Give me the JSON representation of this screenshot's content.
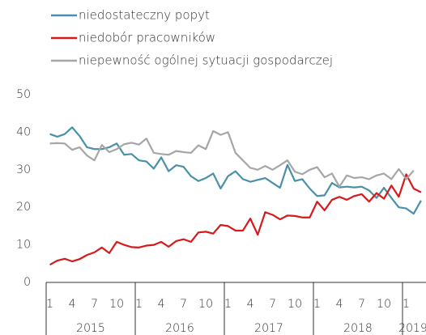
{
  "chart_data": {
    "type": "line",
    "categories": [
      "1",
      null,
      null,
      "4",
      null,
      null,
      "7",
      null,
      null,
      "10",
      null,
      null,
      "1",
      null,
      null,
      "4",
      null,
      null,
      "7",
      null,
      null,
      "10",
      null,
      null,
      "1",
      null,
      null,
      "4",
      null,
      null,
      "7",
      null,
      null,
      "10",
      null,
      null,
      "1",
      null,
      null,
      "4",
      null,
      null,
      "7",
      null,
      null,
      "10",
      null,
      null,
      "1",
      null,
      null
    ],
    "years": [
      "2015",
      "2016",
      "2017",
      "2018",
      "2019"
    ],
    "series": [
      {
        "name": "niedostateczny popyt",
        "color": "#4a90a8",
        "values": [
          39.5,
          38.8,
          39.5,
          41.3,
          39,
          36,
          35.5,
          35.5,
          36,
          37,
          34,
          34.2,
          32.5,
          32.2,
          30.3,
          33.3,
          29.6,
          31.2,
          30.8,
          28.3,
          27,
          27.8,
          29,
          25,
          28.3,
          29.6,
          27.5,
          26.8,
          27.3,
          27.8,
          26.5,
          25.2,
          31.3,
          27,
          27.5,
          25,
          23,
          23.2,
          26.5,
          25.3,
          25.5,
          25.3,
          25.5,
          24.5,
          22.5,
          25.2,
          22.5,
          20,
          19.7,
          18.3,
          21.8
        ]
      },
      {
        "name": "niedobór pracowników",
        "color": "#d7191c",
        "values": [
          4.7,
          5.8,
          6.3,
          5.6,
          6.2,
          7.3,
          8,
          9.3,
          7.8,
          10.8,
          10,
          9.4,
          9.3,
          9.8,
          10,
          10.8,
          9.5,
          11,
          11.5,
          10.8,
          13.3,
          13.5,
          13,
          15.3,
          15,
          13.8,
          13.8,
          17,
          12.7,
          18.7,
          18,
          16.8,
          17.8,
          17.7,
          17.3,
          17.3,
          21.5,
          19.2,
          22,
          22.8,
          22,
          23,
          23.5,
          21.5,
          23.8,
          22.3,
          25.8,
          22.8,
          28.8,
          25,
          24
        ]
      },
      {
        "name": "niepewność ogólnej sytuacji gospodarczej",
        "color": "#a6a6a6",
        "values": [
          37,
          37.1,
          37,
          35.3,
          36,
          33.8,
          32.5,
          36.6,
          34.7,
          35.5,
          36.8,
          37.2,
          36.7,
          38.3,
          34.5,
          34.2,
          34,
          35,
          34.7,
          34.5,
          36.5,
          35.5,
          40.3,
          39.3,
          40,
          34.5,
          32.5,
          30.5,
          30,
          31,
          30,
          31.2,
          32.5,
          29.5,
          28.8,
          30,
          30.7,
          28,
          29,
          25.5,
          28.5,
          27.8,
          28,
          27.5,
          28.5,
          29,
          27.5,
          30.2,
          27.5,
          29.8,
          null
        ]
      }
    ],
    "ylim": [
      0,
      50
    ],
    "yticks": [
      0,
      10,
      20,
      30,
      40,
      50
    ]
  }
}
